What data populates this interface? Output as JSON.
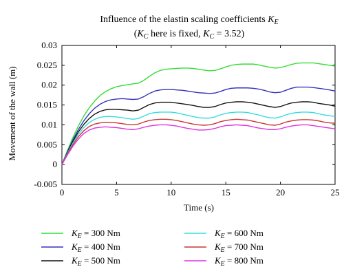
{
  "chart_data": {
    "type": "line",
    "title_line1": "Influence of the elastin scaling coefficients",
    "title_line1_var": "K",
    "title_line1_sub": "E",
    "title_line2": {
      "open": "(",
      "var1": "K",
      "sub1": "C",
      "mid": " here is fixed, ",
      "var2": "K",
      "sub2": "C",
      "tail": " = 3.52)"
    },
    "xlabel": "Time (s)",
    "ylabel": "Movement of the wall (m)",
    "xlim": [
      0,
      25
    ],
    "ylim": [
      -0.005,
      0.03
    ],
    "xticks": [
      "0",
      "5",
      "10",
      "15",
      "20",
      "25"
    ],
    "yticks": [
      "-0.005",
      "0",
      "0.005",
      "0.01",
      "0.015",
      "0.02",
      "0.025",
      "0.03"
    ],
    "grid": false,
    "legend_placement": "bottom",
    "x": [
      0,
      0.5,
      1,
      1.5,
      2,
      2.5,
      3,
      3.5,
      4,
      4.5,
      5,
      5.5,
      6,
      6.5,
      7,
      7.5,
      8,
      8.5,
      9,
      9.5,
      10,
      10.5,
      11,
      11.5,
      12,
      12.5,
      13,
      13.5,
      14,
      14.5,
      15,
      15.5,
      16,
      16.5,
      17,
      17.5,
      18,
      18.5,
      19,
      19.5,
      20,
      20.5,
      21,
      21.5,
      22,
      22.5,
      23,
      23.5,
      24,
      24.5,
      25
    ],
    "series": [
      {
        "name_var": "K",
        "name_sub": "E",
        "name_text": " = 300 Nm",
        "color": "#33dd33",
        "values": [
          0,
          0.0035,
          0.0068,
          0.0097,
          0.0122,
          0.0143,
          0.016,
          0.0174,
          0.0184,
          0.0191,
          0.0196,
          0.0199,
          0.0201,
          0.0203,
          0.0205,
          0.0212,
          0.0222,
          0.0231,
          0.0237,
          0.024,
          0.0241,
          0.0242,
          0.0243,
          0.0243,
          0.0242,
          0.024,
          0.0238,
          0.0236,
          0.0237,
          0.0241,
          0.0246,
          0.025,
          0.0252,
          0.0253,
          0.0253,
          0.0253,
          0.0251,
          0.0248,
          0.0245,
          0.0243,
          0.0244,
          0.0248,
          0.0252,
          0.0255,
          0.0256,
          0.0256,
          0.0256,
          0.0254,
          0.0252,
          0.025,
          0.0248
        ]
      },
      {
        "name_var": "K",
        "name_sub": "E",
        "name_text": " = 400 Nm",
        "color": "#3333bb",
        "values": [
          0,
          0.0032,
          0.0062,
          0.0088,
          0.011,
          0.0128,
          0.0142,
          0.0152,
          0.0159,
          0.0163,
          0.0165,
          0.0166,
          0.0165,
          0.0164,
          0.0165,
          0.0171,
          0.0179,
          0.0185,
          0.0188,
          0.0189,
          0.0189,
          0.0188,
          0.0187,
          0.0185,
          0.0183,
          0.0181,
          0.018,
          0.0179,
          0.018,
          0.0184,
          0.0189,
          0.0192,
          0.0193,
          0.0193,
          0.0193,
          0.0192,
          0.019,
          0.0187,
          0.0183,
          0.0181,
          0.0182,
          0.0187,
          0.0192,
          0.0195,
          0.0195,
          0.0195,
          0.0194,
          0.0192,
          0.019,
          0.0188,
          0.0185
        ]
      },
      {
        "name_var": "K",
        "name_sub": "E",
        "name_text": " = 500 Nm",
        "color": "#111111",
        "values": [
          0,
          0.003,
          0.0058,
          0.0082,
          0.0101,
          0.0116,
          0.0127,
          0.0134,
          0.0138,
          0.0139,
          0.0139,
          0.0138,
          0.0137,
          0.0135,
          0.0137,
          0.0144,
          0.0151,
          0.0155,
          0.0157,
          0.0157,
          0.0157,
          0.0155,
          0.0153,
          0.0151,
          0.0149,
          0.0146,
          0.0144,
          0.0144,
          0.0146,
          0.0151,
          0.0155,
          0.0157,
          0.0158,
          0.0158,
          0.0157,
          0.0155,
          0.0152,
          0.0149,
          0.0146,
          0.0144,
          0.0146,
          0.0151,
          0.0155,
          0.0157,
          0.0158,
          0.0158,
          0.0157,
          0.0154,
          0.0152,
          0.015,
          0.0147
        ]
      },
      {
        "name_var": "K",
        "name_sub": "E",
        "name_text": " = 600 Nm",
        "color": "#33dddd",
        "values": [
          0,
          0.0028,
          0.0054,
          0.0076,
          0.0093,
          0.0106,
          0.0114,
          0.0119,
          0.0121,
          0.0121,
          0.012,
          0.0118,
          0.0116,
          0.0114,
          0.0116,
          0.0122,
          0.0128,
          0.0131,
          0.0132,
          0.0132,
          0.0132,
          0.013,
          0.0127,
          0.0124,
          0.0121,
          0.0118,
          0.0117,
          0.0117,
          0.012,
          0.0125,
          0.0129,
          0.0131,
          0.0132,
          0.0132,
          0.0131,
          0.0128,
          0.0125,
          0.0121,
          0.0118,
          0.0117,
          0.012,
          0.0125,
          0.0129,
          0.0131,
          0.0132,
          0.0132,
          0.0131,
          0.0128,
          0.0125,
          0.0123,
          0.0121
        ]
      },
      {
        "name_var": "K",
        "name_sub": "E",
        "name_text": " = 700 Nm",
        "color": "#cc3333",
        "values": [
          0,
          0.0026,
          0.005,
          0.007,
          0.0085,
          0.0096,
          0.0102,
          0.0105,
          0.0106,
          0.0106,
          0.0105,
          0.0103,
          0.0101,
          0.01,
          0.0102,
          0.0107,
          0.0111,
          0.0113,
          0.0114,
          0.0114,
          0.0113,
          0.0111,
          0.0108,
          0.0105,
          0.0102,
          0.01,
          0.0099,
          0.01,
          0.0103,
          0.0108,
          0.0111,
          0.0113,
          0.0114,
          0.0113,
          0.0112,
          0.0109,
          0.0106,
          0.0103,
          0.01,
          0.0099,
          0.0102,
          0.0107,
          0.011,
          0.0112,
          0.0113,
          0.0113,
          0.0112,
          0.011,
          0.0107,
          0.0105,
          0.0104
        ]
      },
      {
        "name_var": "K",
        "name_sub": "E",
        "name_text": " = 800 Nm",
        "color": "#dd33dd",
        "values": [
          0,
          0.0024,
          0.0046,
          0.0064,
          0.0078,
          0.0087,
          0.0092,
          0.0094,
          0.0095,
          0.0094,
          0.0093,
          0.0091,
          0.0089,
          0.0088,
          0.009,
          0.0094,
          0.0097,
          0.0099,
          0.01,
          0.01,
          0.0099,
          0.0097,
          0.0094,
          0.0091,
          0.0089,
          0.0087,
          0.0087,
          0.0088,
          0.0091,
          0.0095,
          0.0098,
          0.0099,
          0.01,
          0.0099,
          0.0098,
          0.0095,
          0.0092,
          0.009,
          0.0088,
          0.0088,
          0.009,
          0.0094,
          0.0097,
          0.0099,
          0.01,
          0.01,
          0.0098,
          0.0096,
          0.0094,
          0.0092,
          0.009
        ]
      }
    ]
  }
}
